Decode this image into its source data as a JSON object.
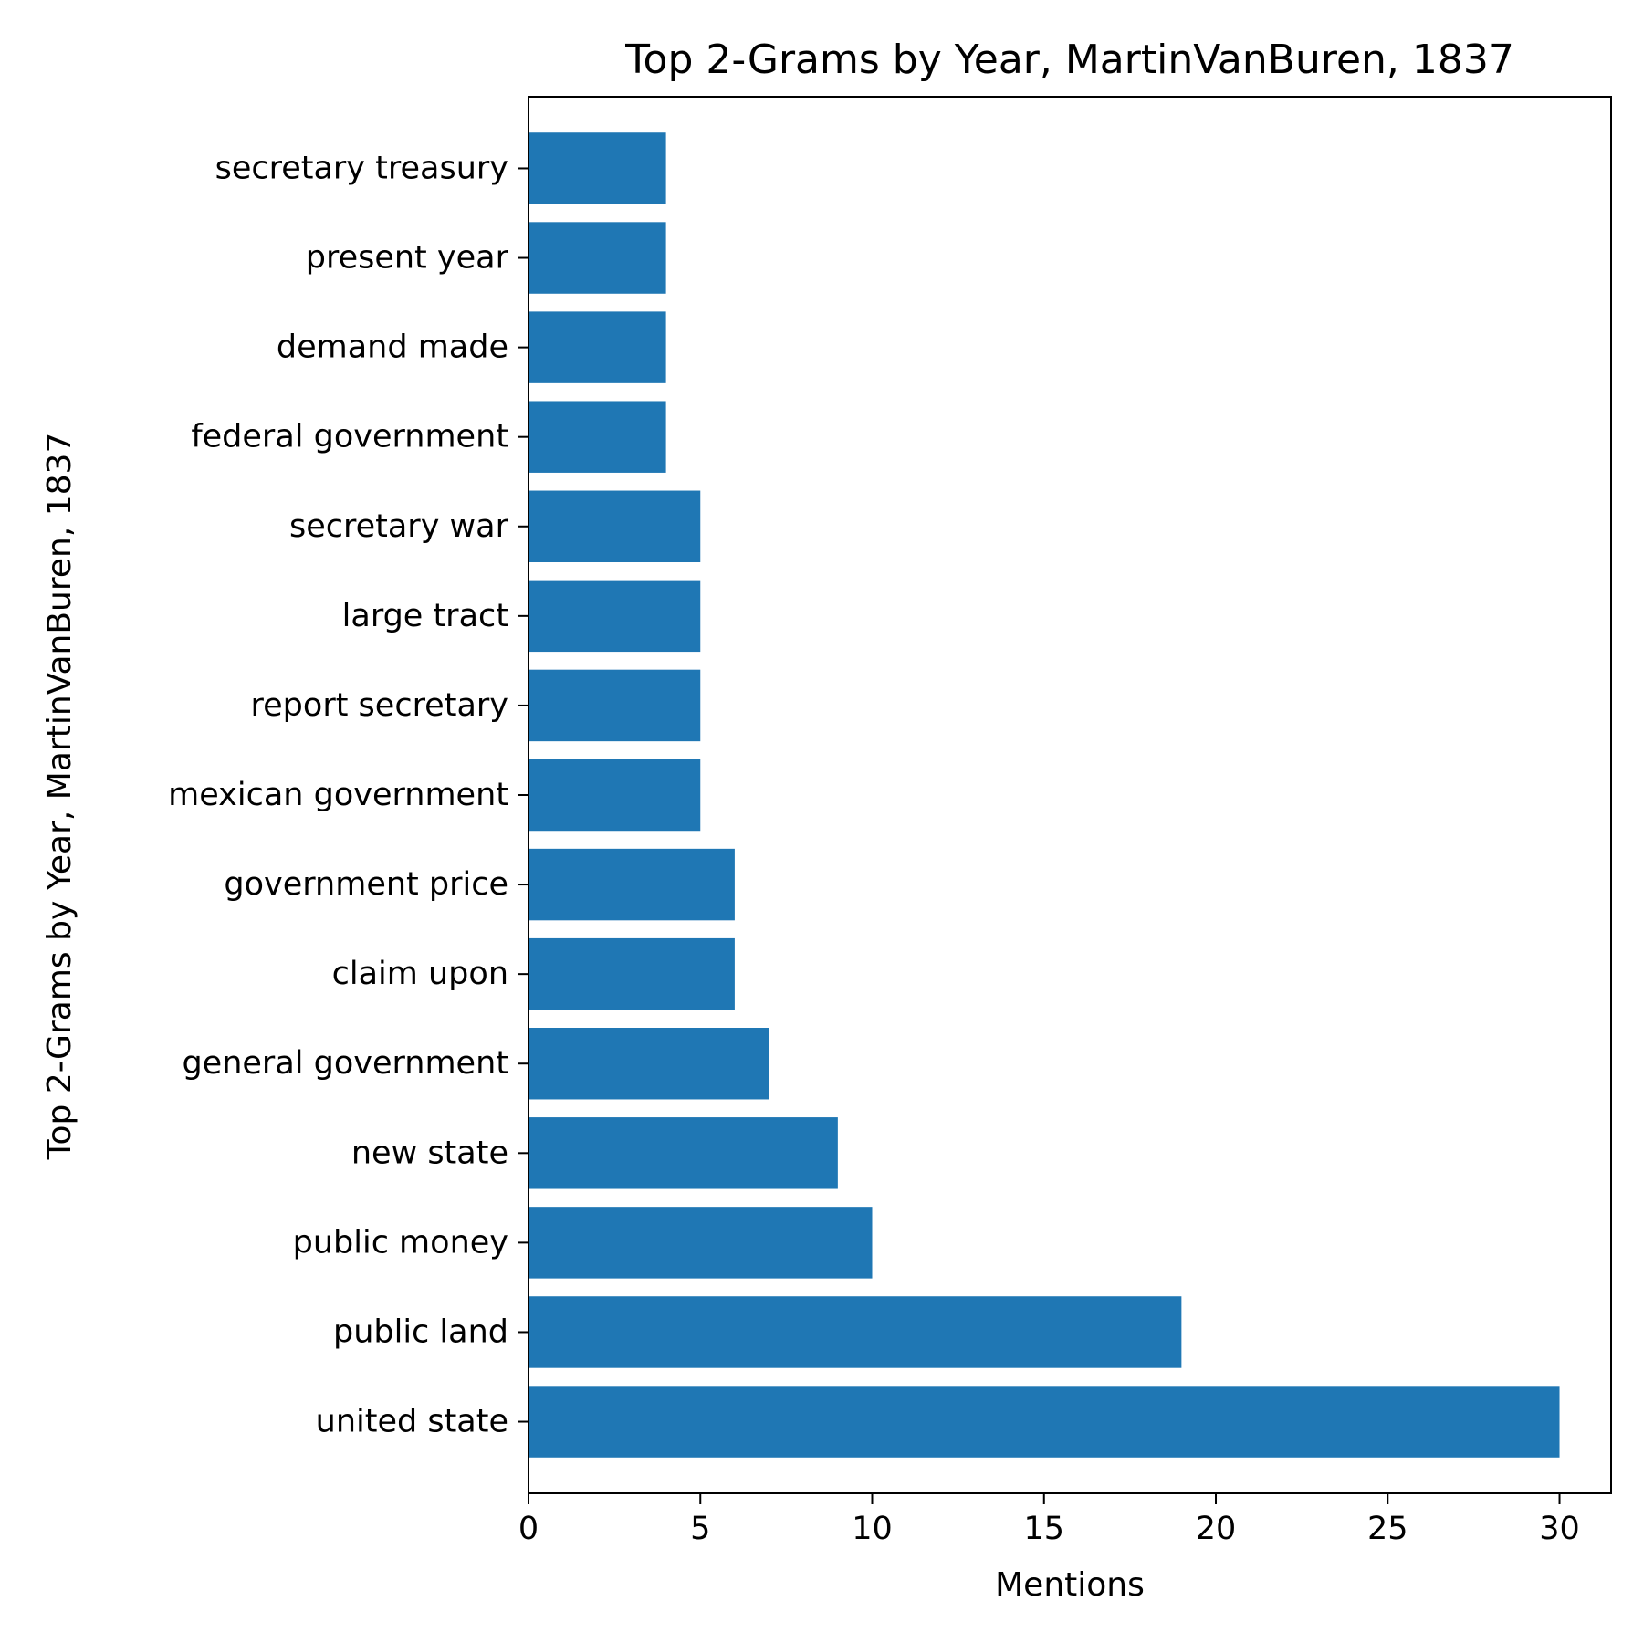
{
  "chart_data": {
    "type": "bar",
    "orientation": "horizontal",
    "title": "Top 2-Grams by Year, MartinVanBuren, 1837",
    "xlabel": "Mentions",
    "ylabel": "Top 2-Grams by Year, MartinVanBuren, 1837",
    "categories": [
      "united state",
      "public land",
      "public money",
      "new state",
      "general government",
      "claim upon",
      "government price",
      "mexican government",
      "report secretary",
      "large tract",
      "secretary war",
      "federal government",
      "demand made",
      "present year",
      "secretary treasury"
    ],
    "values": [
      30,
      19,
      10,
      9,
      7,
      6,
      6,
      5,
      5,
      5,
      5,
      4,
      4,
      4,
      4
    ],
    "xlim": [
      0,
      31.5
    ],
    "xticks": [
      0,
      5,
      10,
      15,
      20,
      25,
      30
    ],
    "grid": false,
    "bar_color": "#1f77b4"
  }
}
